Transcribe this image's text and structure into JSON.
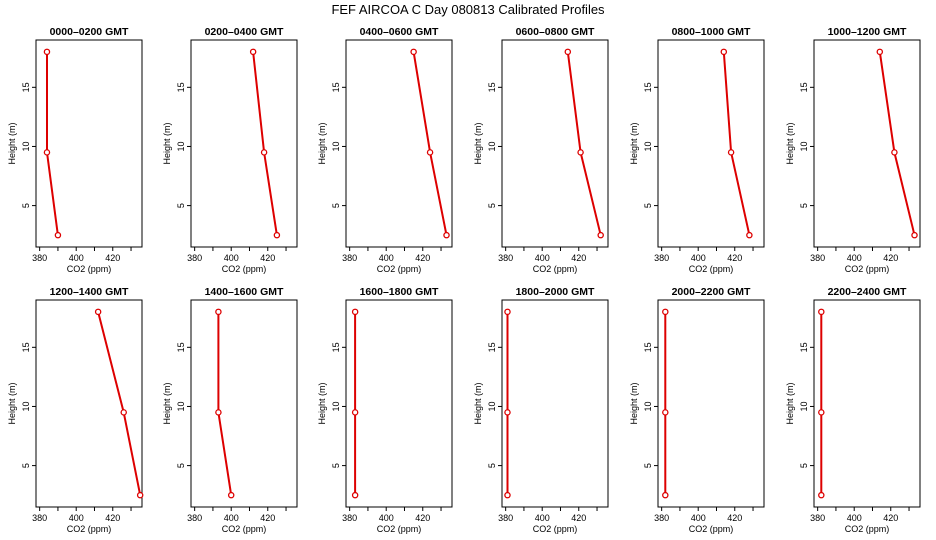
{
  "figure": {
    "title": "FEF  AIRCOA C  Day 080813  Calibrated Profiles"
  },
  "colors": {
    "series": "#dd0000",
    "axis": "#000000"
  },
  "chart_data": [
    {
      "type": "line",
      "title": "0000–0200 GMT",
      "xlabel": "CO2 (ppm)",
      "ylabel": "Height (m)",
      "xlim": [
        378,
        436
      ],
      "ylim": [
        1.5,
        19
      ],
      "xticks": [
        380,
        400,
        420
      ],
      "yticks": [
        5,
        10,
        15
      ],
      "x": [
        384,
        384,
        390
      ],
      "y": [
        18,
        9.5,
        2.5
      ]
    },
    {
      "type": "line",
      "title": "0200–0400 GMT",
      "xlabel": "CO2 (ppm)",
      "ylabel": "Height (m)",
      "xlim": [
        378,
        436
      ],
      "ylim": [
        1.5,
        19
      ],
      "xticks": [
        380,
        400,
        420
      ],
      "yticks": [
        5,
        10,
        15
      ],
      "x": [
        412,
        418,
        425
      ],
      "y": [
        18,
        9.5,
        2.5
      ]
    },
    {
      "type": "line",
      "title": "0400–0600 GMT",
      "xlabel": "CO2 (ppm)",
      "ylabel": "Height (m)",
      "xlim": [
        378,
        436
      ],
      "ylim": [
        1.5,
        19
      ],
      "xticks": [
        380,
        400,
        420
      ],
      "yticks": [
        5,
        10,
        15
      ],
      "x": [
        415,
        424,
        433
      ],
      "y": [
        18,
        9.5,
        2.5
      ]
    },
    {
      "type": "line",
      "title": "0600–0800 GMT",
      "xlabel": "CO2 (ppm)",
      "ylabel": "Height (m)",
      "xlim": [
        378,
        436
      ],
      "ylim": [
        1.5,
        19
      ],
      "xticks": [
        380,
        400,
        420
      ],
      "yticks": [
        5,
        10,
        15
      ],
      "x": [
        414,
        421,
        432
      ],
      "y": [
        18,
        9.5,
        2.5
      ]
    },
    {
      "type": "line",
      "title": "0800–1000 GMT",
      "xlabel": "CO2 (ppm)",
      "ylabel": "Height (m)",
      "xlim": [
        378,
        436
      ],
      "ylim": [
        1.5,
        19
      ],
      "xticks": [
        380,
        400,
        420
      ],
      "yticks": [
        5,
        10,
        15
      ],
      "x": [
        414,
        418,
        428
      ],
      "y": [
        18,
        9.5,
        2.5
      ]
    },
    {
      "type": "line",
      "title": "1000–1200 GMT",
      "xlabel": "CO2 (ppm)",
      "ylabel": "Height (m)",
      "xlim": [
        378,
        436
      ],
      "ylim": [
        1.5,
        19
      ],
      "xticks": [
        380,
        400,
        420
      ],
      "yticks": [
        5,
        10,
        15
      ],
      "x": [
        414,
        422,
        433
      ],
      "y": [
        18,
        9.5,
        2.5
      ]
    },
    {
      "type": "line",
      "title": "1200–1400 GMT",
      "xlabel": "CO2 (ppm)",
      "ylabel": "Height (m)",
      "xlim": [
        378,
        436
      ],
      "ylim": [
        1.5,
        19
      ],
      "xticks": [
        380,
        400,
        420
      ],
      "yticks": [
        5,
        10,
        15
      ],
      "x": [
        412,
        426,
        435
      ],
      "y": [
        18,
        9.5,
        2.5
      ]
    },
    {
      "type": "line",
      "title": "1400–1600 GMT",
      "xlabel": "CO2 (ppm)",
      "ylabel": "Height (m)",
      "xlim": [
        378,
        436
      ],
      "ylim": [
        1.5,
        19
      ],
      "xticks": [
        380,
        400,
        420
      ],
      "yticks": [
        5,
        10,
        15
      ],
      "x": [
        393,
        393,
        400
      ],
      "y": [
        18,
        9.5,
        2.5
      ]
    },
    {
      "type": "line",
      "title": "1600–1800 GMT",
      "xlabel": "CO2 (ppm)",
      "ylabel": "Height (m)",
      "xlim": [
        378,
        436
      ],
      "ylim": [
        1.5,
        19
      ],
      "xticks": [
        380,
        400,
        420
      ],
      "yticks": [
        5,
        10,
        15
      ],
      "x": [
        383,
        383,
        383
      ],
      "y": [
        18,
        9.5,
        2.5
      ]
    },
    {
      "type": "line",
      "title": "1800–2000 GMT",
      "xlabel": "CO2 (ppm)",
      "ylabel": "Height (m)",
      "xlim": [
        378,
        436
      ],
      "ylim": [
        1.5,
        19
      ],
      "xticks": [
        380,
        400,
        420
      ],
      "yticks": [
        5,
        10,
        15
      ],
      "x": [
        381,
        381,
        381
      ],
      "y": [
        18,
        9.5,
        2.5
      ]
    },
    {
      "type": "line",
      "title": "2000–2200 GMT",
      "xlabel": "CO2 (ppm)",
      "ylabel": "Height (m)",
      "xlim": [
        378,
        436
      ],
      "ylim": [
        1.5,
        19
      ],
      "xticks": [
        380,
        400,
        420
      ],
      "yticks": [
        5,
        10,
        15
      ],
      "x": [
        382,
        382,
        382
      ],
      "y": [
        18,
        9.5,
        2.5
      ]
    },
    {
      "type": "line",
      "title": "2200–2400 GMT",
      "xlabel": "CO2 (ppm)",
      "ylabel": "Height (m)",
      "xlim": [
        378,
        436
      ],
      "ylim": [
        1.5,
        19
      ],
      "xticks": [
        380,
        400,
        420
      ],
      "yticks": [
        5,
        10,
        15
      ],
      "x": [
        382,
        382,
        382
      ],
      "y": [
        18,
        9.5,
        2.5
      ]
    }
  ]
}
